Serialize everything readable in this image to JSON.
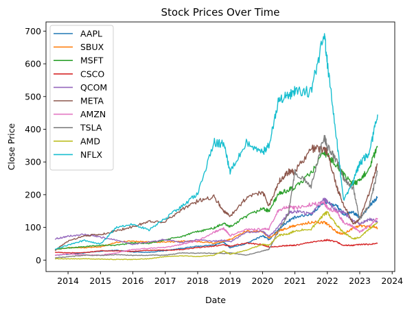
{
  "chart_data": {
    "type": "line",
    "title": "Stock Prices Over Time",
    "xlabel": "Date",
    "ylabel": "Close Price",
    "xlim": [
      2013.32,
      2024.08
    ],
    "ylim": [
      -35,
      728
    ],
    "x_ticks": [
      2014,
      2015,
      2016,
      2017,
      2018,
      2019,
      2020,
      2021,
      2022,
      2023,
      2024
    ],
    "x_tick_labels": [
      "2014",
      "2015",
      "2016",
      "2017",
      "2018",
      "2019",
      "2020",
      "2021",
      "2022",
      "2023",
      "2024"
    ],
    "y_ticks": [
      0,
      100,
      200,
      300,
      400,
      500,
      600,
      700
    ],
    "y_tick_labels": [
      "0",
      "100",
      "200",
      "300",
      "400",
      "500",
      "600",
      "700"
    ],
    "grid": false,
    "legend_position": "top-left",
    "x": [
      2013.6,
      2014.0,
      2014.5,
      2015.0,
      2015.5,
      2016.0,
      2016.5,
      2017.0,
      2017.5,
      2018.0,
      2018.5,
      2018.8,
      2019.0,
      2019.5,
      2020.0,
      2020.2,
      2020.5,
      2020.8,
      2021.0,
      2021.5,
      2021.9,
      2022.0,
      2022.3,
      2022.5,
      2022.8,
      2023.0,
      2023.3,
      2023.55
    ],
    "series": [
      {
        "name": "AAPL",
        "color": "#1f77b4",
        "values": [
          15,
          18,
          22,
          27,
          30,
          25,
          24,
          29,
          36,
          42,
          46,
          55,
          38,
          50,
          75,
          62,
          95,
          120,
          130,
          140,
          178,
          175,
          165,
          140,
          145,
          130,
          165,
          192
        ]
      },
      {
        "name": "SBUX",
        "color": "#ff7f0e",
        "values": [
          33,
          38,
          38,
          40,
          55,
          58,
          55,
          55,
          58,
          57,
          52,
          58,
          63,
          88,
          88,
          68,
          88,
          100,
          105,
          116,
          115,
          110,
          85,
          80,
          98,
          105,
          102,
          98
        ]
      },
      {
        "name": "MSFT",
        "color": "#2ca02c",
        "values": [
          33,
          37,
          41,
          45,
          46,
          53,
          51,
          62,
          72,
          87,
          98,
          112,
          102,
          133,
          158,
          150,
          203,
          214,
          222,
          265,
          330,
          320,
          290,
          260,
          235,
          240,
          285,
          345
        ]
      },
      {
        "name": "CSCO",
        "color": "#d62728",
        "values": [
          24,
          22,
          23,
          28,
          28,
          27,
          30,
          30,
          32,
          38,
          43,
          46,
          43,
          52,
          47,
          40,
          42,
          45,
          45,
          55,
          60,
          62,
          55,
          45,
          45,
          48,
          48,
          52
        ]
      },
      {
        "name": "QCOM",
        "color": "#9467bd",
        "values": [
          65,
          73,
          78,
          70,
          62,
          48,
          55,
          63,
          54,
          62,
          58,
          60,
          56,
          85,
          88,
          72,
          102,
          145,
          150,
          140,
          185,
          180,
          150,
          145,
          120,
          110,
          125,
          118
        ]
      },
      {
        "name": "META",
        "color": "#8c564b",
        "values": [
          30,
          58,
          75,
          78,
          90,
          102,
          118,
          118,
          155,
          180,
          195,
          150,
          135,
          190,
          210,
          165,
          240,
          270,
          270,
          340,
          340,
          330,
          220,
          170,
          110,
          125,
          210,
          295
        ]
      },
      {
        "name": "AMZN",
        "color": "#e377c2",
        "values": [
          15,
          19,
          16,
          15,
          22,
          33,
          36,
          39,
          48,
          59,
          85,
          97,
          75,
          93,
          94,
          95,
          155,
          162,
          160,
          170,
          175,
          160,
          145,
          115,
          102,
          85,
          105,
          128
        ]
      },
      {
        "name": "TSLA",
        "color": "#7f7f7f",
        "values": [
          7,
          10,
          15,
          14,
          17,
          14,
          15,
          15,
          22,
          21,
          21,
          20,
          22,
          15,
          28,
          33,
          90,
          140,
          270,
          225,
          380,
          350,
          300,
          250,
          220,
          125,
          170,
          270
        ]
      },
      {
        "name": "AMD",
        "color": "#bcbd22",
        "values": [
          4,
          4,
          4,
          3,
          2,
          2,
          4,
          11,
          13,
          11,
          15,
          28,
          18,
          30,
          48,
          45,
          76,
          80,
          90,
          95,
          140,
          145,
          105,
          85,
          65,
          70,
          95,
          115
        ]
      },
      {
        "name": "NFLX",
        "color": "#17becf",
        "values": [
          34,
          46,
          60,
          49,
          100,
          110,
          92,
          127,
          164,
          203,
          360,
          355,
          270,
          360,
          330,
          350,
          490,
          500,
          520,
          515,
          690,
          600,
          360,
          180,
          240,
          295,
          330,
          445
        ]
      }
    ]
  }
}
